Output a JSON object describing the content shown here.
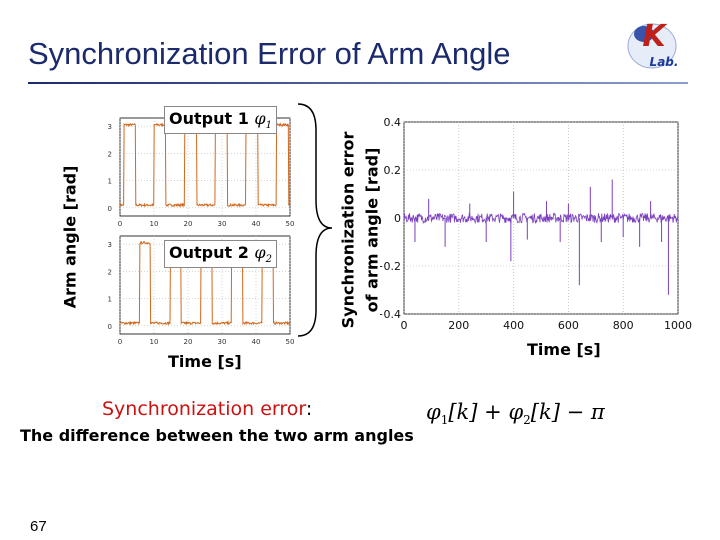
{
  "title": "Synchronization Error of Arm Angle",
  "logo": {
    "letters": "K",
    "sub": "Lab.",
    "colors": {
      "primary": "#c0201a",
      "accent": "#1a3a9c"
    }
  },
  "left_panel": {
    "ylabel": "Arm angle [rad]",
    "xlabel": "Time [s]",
    "output1": {
      "label": "Output 1",
      "symbol": "φ",
      "sub": "1"
    },
    "output2": {
      "label": "Output 2",
      "symbol": "φ",
      "sub": "2"
    }
  },
  "right_panel": {
    "ylabel_line1": "Synchronization error",
    "ylabel_line2": "of arm angle [rad]",
    "xlabel": "Time [s]"
  },
  "chart_data": [
    {
      "type": "line",
      "title": "",
      "legend": "Output 1",
      "xlabel": "",
      "ylabel": "Arm angle [rad]",
      "xlim": [
        0,
        50
      ],
      "ylim": [
        -0.3,
        3.3
      ],
      "xticks": [
        "0",
        "10",
        "20",
        "30",
        "40",
        "50"
      ],
      "yticks": [
        "0",
        "1",
        "2",
        "3"
      ],
      "series_color": "#d2691e",
      "shape": "square-wave",
      "low": 0.1,
      "high": 3.05,
      "high_intervals": [
        [
          1.2,
          4.5
        ],
        [
          10.0,
          13.5
        ],
        [
          19.0,
          22.5
        ],
        [
          28.0,
          31.5
        ],
        [
          37.0,
          40.5
        ],
        [
          46.0,
          49.5
        ]
      ]
    },
    {
      "type": "line",
      "title": "",
      "legend": "Output 2",
      "xlabel": "Time [s]",
      "ylabel": "Arm angle [rad]",
      "xlim": [
        0,
        50
      ],
      "ylim": [
        -0.3,
        3.3
      ],
      "xticks": [
        "0",
        "10",
        "20",
        "30",
        "40",
        "50"
      ],
      "yticks": [
        "0",
        "1",
        "2",
        "3"
      ],
      "series_color": "#d2691e",
      "shape": "square-wave",
      "low": 0.1,
      "high": 3.05,
      "high_intervals": [
        [
          5.8,
          9.0
        ],
        [
          14.8,
          18.0
        ],
        [
          23.8,
          27.0
        ],
        [
          32.8,
          36.0
        ],
        [
          41.8,
          45.0
        ]
      ]
    },
    {
      "type": "line",
      "title": "",
      "xlabel": "Time [s]",
      "ylabel": "Synchronization error of arm angle [rad]",
      "xlim": [
        0,
        1000
      ],
      "ylim": [
        -0.4,
        0.4
      ],
      "xticks": [
        "0",
        "200",
        "400",
        "600",
        "800",
        "1000"
      ],
      "yticks": [
        "0.4",
        "0.2",
        "0",
        "−0.2",
        "−0.4"
      ],
      "grid": true,
      "series_color": "#7b3fbf",
      "baseline": 0.0,
      "noise_amplitude": 0.02,
      "spikes": [
        {
          "x": 40,
          "y": -0.1
        },
        {
          "x": 90,
          "y": 0.08
        },
        {
          "x": 150,
          "y": -0.12
        },
        {
          "x": 240,
          "y": 0.06
        },
        {
          "x": 300,
          "y": -0.1
        },
        {
          "x": 390,
          "y": -0.18
        },
        {
          "x": 400,
          "y": 0.11
        },
        {
          "x": 450,
          "y": -0.09
        },
        {
          "x": 520,
          "y": 0.07
        },
        {
          "x": 570,
          "y": -0.1
        },
        {
          "x": 600,
          "y": 0.06
        },
        {
          "x": 640,
          "y": -0.28
        },
        {
          "x": 680,
          "y": 0.13
        },
        {
          "x": 720,
          "y": -0.1
        },
        {
          "x": 760,
          "y": 0.16
        },
        {
          "x": 800,
          "y": -0.08
        },
        {
          "x": 860,
          "y": -0.12
        },
        {
          "x": 900,
          "y": 0.07
        },
        {
          "x": 940,
          "y": -0.1
        },
        {
          "x": 965,
          "y": -0.32
        }
      ]
    }
  ],
  "sync_error": {
    "heading": "Synchronization error",
    "colon": ":",
    "description": "The difference between the two arm angles",
    "formula": {
      "phi": "φ",
      "sub1": "1",
      "k": "[k]",
      "plus": " + ",
      "sub2": "2",
      "minus": " − ",
      "pi": "π"
    }
  },
  "page_number": "67"
}
